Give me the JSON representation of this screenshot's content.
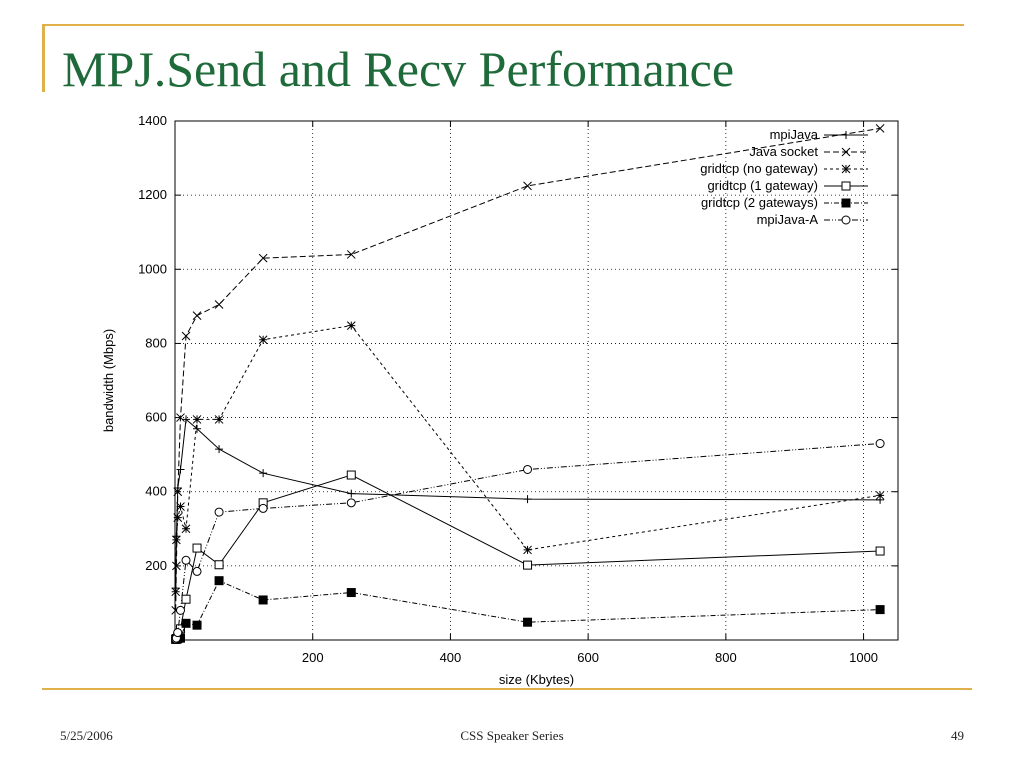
{
  "slide": {
    "title": "MPJ.Send and Recv Performance",
    "footer_date": "5/25/2006",
    "footer_center": "CSS Speaker Series",
    "page_number": "49"
  },
  "colors": {
    "accent": "#e0b14a",
    "title": "#1f6a3a"
  },
  "chart_data": {
    "type": "line",
    "xlabel": "size (Kbytes)",
    "ylabel": "bandwidth (Mbps)",
    "xlim": [
      0,
      1050
    ],
    "ylim": [
      0,
      1400
    ],
    "xticks": [
      200,
      400,
      600,
      800,
      1000
    ],
    "yticks": [
      200,
      400,
      600,
      800,
      1000,
      1200,
      1400
    ],
    "grid": true,
    "legend_position": "top-right",
    "series": [
      {
        "name": "mpiJava",
        "marker": "plus",
        "dash": "none",
        "x": [
          1,
          2,
          4,
          8,
          16,
          32,
          64,
          128,
          256,
          512,
          1024
        ],
        "y": [
          140,
          280,
          410,
          460,
          595,
          570,
          515,
          450,
          395,
          380,
          378
        ]
      },
      {
        "name": "Java socket",
        "marker": "x",
        "dash": "6,3",
        "x": [
          1,
          2,
          4,
          8,
          16,
          32,
          64,
          128,
          256,
          512,
          1024
        ],
        "y": [
          80,
          200,
          400,
          600,
          820,
          875,
          905,
          1030,
          1040,
          1225,
          1380
        ]
      },
      {
        "name": "gridtcp (no gateway)",
        "marker": "star",
        "dash": "3,3",
        "x": [
          1,
          2,
          4,
          8,
          16,
          32,
          64,
          128,
          256,
          512,
          1024
        ],
        "y": [
          130,
          270,
          330,
          360,
          300,
          595,
          595,
          810,
          848,
          243,
          390
        ]
      },
      {
        "name": "gridtcp (1 gateway)",
        "marker": "square",
        "dash": "none",
        "x": [
          1,
          2,
          4,
          8,
          16,
          32,
          64,
          128,
          256,
          512,
          1024
        ],
        "y": [
          2,
          4,
          8,
          30,
          110,
          248,
          203,
          370,
          445,
          202,
          240
        ]
      },
      {
        "name": "gridtcp (2 gateways)",
        "marker": "filled-square",
        "dash": "5,2,1,2",
        "x": [
          1,
          2,
          4,
          8,
          16,
          32,
          64,
          128,
          256,
          512,
          1024
        ],
        "y": [
          2,
          2,
          3,
          5,
          45,
          40,
          160,
          108,
          128,
          48,
          82
        ]
      },
      {
        "name": "mpiJava-A",
        "marker": "circle",
        "dash": "6,2,1,2,1,2",
        "x": [
          1,
          2,
          4,
          8,
          16,
          32,
          64,
          128,
          256,
          512,
          1024
        ],
        "y": [
          2,
          5,
          20,
          80,
          215,
          185,
          345,
          355,
          370,
          460,
          530
        ]
      }
    ]
  }
}
